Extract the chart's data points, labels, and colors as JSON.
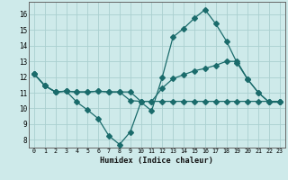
{
  "title": "",
  "xlabel": "Humidex (Indice chaleur)",
  "background_color": "#ceeaea",
  "grid_color": "#aacfcf",
  "line_color": "#1a6b6b",
  "xlim": [
    -0.5,
    23.5
  ],
  "ylim": [
    7.5,
    16.8
  ],
  "yticks": [
    8,
    9,
    10,
    11,
    12,
    13,
    14,
    15,
    16
  ],
  "xticks": [
    0,
    1,
    2,
    3,
    4,
    5,
    6,
    7,
    8,
    9,
    10,
    11,
    12,
    13,
    14,
    15,
    16,
    17,
    18,
    19,
    20,
    21,
    22,
    23
  ],
  "curve1_x": [
    0,
    1,
    2,
    3,
    4,
    5,
    6,
    7,
    8,
    9,
    10,
    11,
    12,
    13,
    14,
    15,
    16,
    17,
    18,
    19,
    20,
    21,
    22,
    23
  ],
  "curve1_y": [
    12.2,
    11.45,
    11.05,
    11.1,
    10.4,
    9.9,
    9.35,
    8.25,
    7.7,
    8.5,
    10.4,
    9.85,
    12.0,
    14.55,
    15.1,
    15.75,
    16.3,
    15.4,
    14.3,
    12.9,
    11.85,
    11.0,
    10.4,
    10.4
  ],
  "curve2_x": [
    0,
    1,
    2,
    3,
    4,
    5,
    6,
    7,
    8,
    9,
    10,
    11,
    12,
    13,
    14,
    15,
    16,
    17,
    18,
    19,
    20,
    21,
    22,
    23
  ],
  "curve2_y": [
    12.2,
    11.45,
    11.05,
    11.1,
    11.05,
    11.05,
    11.1,
    11.05,
    11.05,
    11.05,
    10.45,
    10.45,
    11.3,
    11.9,
    12.15,
    12.4,
    12.55,
    12.75,
    13.0,
    13.0,
    11.85,
    11.0,
    10.4,
    10.4
  ],
  "curve3_x": [
    0,
    1,
    2,
    3,
    4,
    5,
    6,
    7,
    8,
    9,
    10,
    11,
    12,
    13,
    14,
    15,
    16,
    17,
    18,
    19,
    20,
    21,
    22,
    23
  ],
  "curve3_y": [
    12.2,
    11.45,
    11.05,
    11.1,
    11.05,
    11.05,
    11.1,
    11.05,
    11.05,
    10.5,
    10.45,
    10.45,
    10.45,
    10.45,
    10.45,
    10.45,
    10.45,
    10.45,
    10.45,
    10.45,
    10.45,
    10.45,
    10.45,
    10.45
  ],
  "markersize": 3,
  "linewidth": 0.9
}
